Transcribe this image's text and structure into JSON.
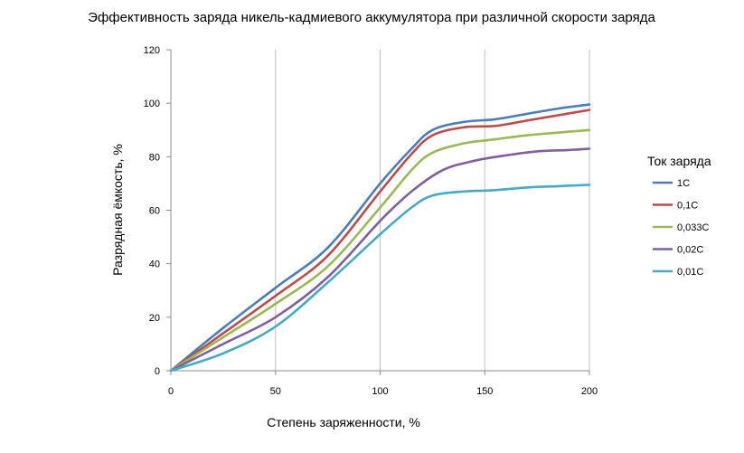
{
  "chart_data": {
    "type": "line",
    "title": "Эффективность заряда никель-кадмиевого аккумулятора при различной скорости заряда",
    "xlabel": "Степень заряженности, %",
    "ylabel": "Разрядная ёмкость, %",
    "xlim": [
      0,
      200
    ],
    "ylim": [
      0,
      120
    ],
    "xticks": [
      0,
      50,
      100,
      150,
      200
    ],
    "yticks": [
      0,
      20,
      40,
      60,
      80,
      100,
      120
    ],
    "xtick_labels": [
      "0",
      "50",
      "100",
      "150",
      "200"
    ],
    "ytick_labels": [
      "0",
      "20",
      "40",
      "60",
      "80",
      "100",
      "120"
    ],
    "grid": "vertical",
    "legend": {
      "title": "Ток заряда",
      "placement": "right"
    },
    "series": [
      {
        "name": "1C",
        "color": "#4a7ebb",
        "x": [
          0,
          25,
          50,
          75,
          100,
          115,
          125,
          140,
          155,
          170,
          185,
          200
        ],
        "y": [
          0,
          16,
          31,
          46,
          70,
          83,
          90,
          93,
          94,
          96,
          98,
          99.5
        ]
      },
      {
        "name": "0,1C",
        "color": "#be4b48",
        "x": [
          0,
          25,
          50,
          75,
          100,
          115,
          125,
          140,
          155,
          170,
          185,
          200
        ],
        "y": [
          0,
          14,
          28,
          43,
          67,
          81,
          88,
          91,
          91.5,
          93.5,
          95.5,
          97.5
        ]
      },
      {
        "name": "0,033C",
        "color": "#98b954",
        "x": [
          0,
          25,
          50,
          75,
          100,
          115,
          125,
          140,
          155,
          170,
          185,
          200
        ],
        "y": [
          0,
          12.5,
          25,
          39,
          61,
          75,
          81.5,
          85,
          86.5,
          88,
          89,
          90
        ]
      },
      {
        "name": "0,02C",
        "color": "#7d60a0",
        "x": [
          0,
          25,
          50,
          75,
          100,
          115,
          130,
          145,
          160,
          175,
          190,
          200
        ],
        "y": [
          0,
          10,
          20,
          35,
          56,
          67,
          75,
          78.5,
          80.5,
          82,
          82.5,
          83
        ]
      },
      {
        "name": "0,01C",
        "color": "#46aac5",
        "x": [
          0,
          25,
          50,
          75,
          100,
          115,
          125,
          140,
          155,
          170,
          185,
          200
        ],
        "y": [
          0,
          6.5,
          16.5,
          33,
          51,
          61,
          65.5,
          67,
          67.5,
          68.5,
          69,
          69.5
        ]
      }
    ]
  }
}
